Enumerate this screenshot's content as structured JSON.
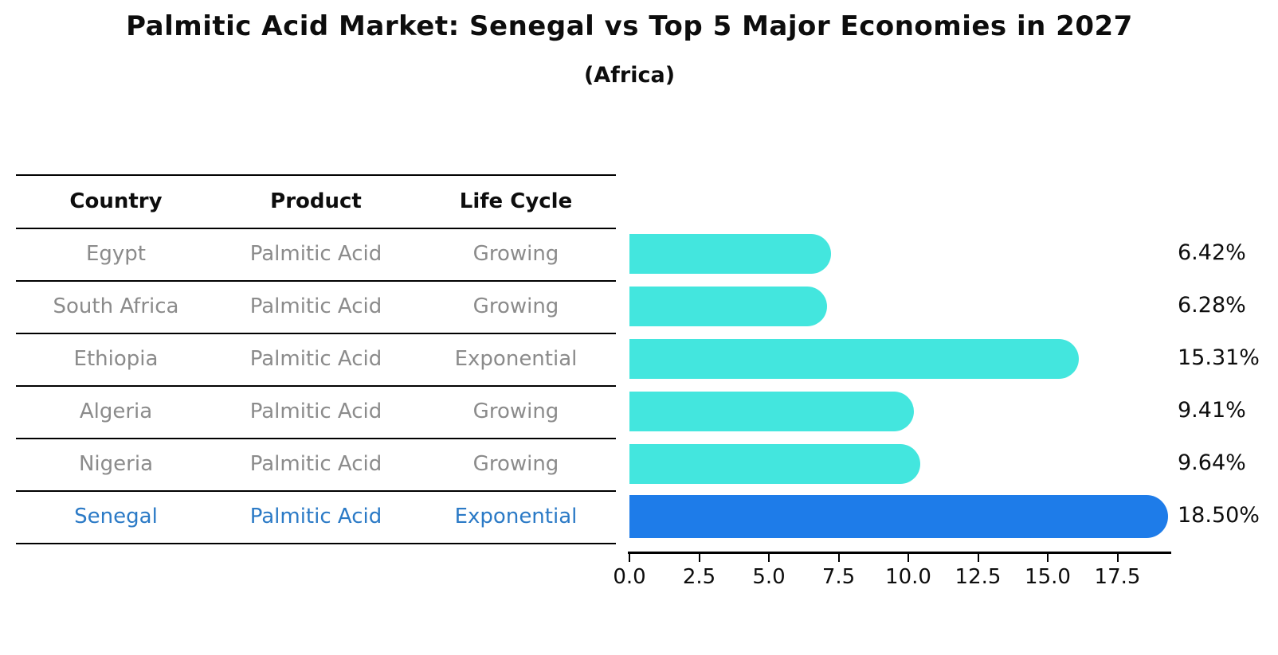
{
  "chart_data": {
    "type": "bar",
    "orientation": "horizontal",
    "title": "Palmitic Acid Market: Senegal vs Top 5 Major Economies in 2027",
    "subtitle": "(Africa)",
    "categories": [
      "Egypt",
      "South Africa",
      "Ethiopia",
      "Algeria",
      "Nigeria",
      "Senegal"
    ],
    "values": [
      6.42,
      6.28,
      15.31,
      9.41,
      9.64,
      18.5
    ],
    "value_labels": [
      "6.42%",
      "6.28%",
      "15.31%",
      "9.41%",
      "9.64%",
      "18.50%"
    ],
    "xlim": [
      0,
      19.43
    ],
    "x_ticks": [
      0,
      2.5,
      5,
      7.5,
      10,
      12.5,
      15,
      17.5
    ],
    "x_tick_labels": [
      "0.0",
      "2.5",
      "5.0",
      "7.5",
      "10.0",
      "12.5",
      "15.0",
      "17.5"
    ],
    "grid": false,
    "legend": false,
    "highlight_index": 5,
    "bar_color": "#43e6de",
    "highlight_bar_color": "#1e7ce9"
  },
  "table": {
    "headers": [
      "Country",
      "Product",
      "Life Cycle"
    ],
    "rows": [
      {
        "country": "Egypt",
        "product": "Palmitic Acid",
        "life_cycle": "Growing",
        "highlight": false
      },
      {
        "country": "South Africa",
        "product": "Palmitic Acid",
        "life_cycle": "Growing",
        "highlight": false
      },
      {
        "country": "Ethiopia",
        "product": "Palmitic Acid",
        "life_cycle": "Exponential",
        "highlight": false
      },
      {
        "country": "Algeria",
        "product": "Palmitic Acid",
        "life_cycle": "Growing",
        "highlight": false
      },
      {
        "country": "Nigeria",
        "product": "Palmitic Acid",
        "life_cycle": "Growing",
        "highlight": false
      },
      {
        "country": "Senegal",
        "product": "Palmitic Acid",
        "life_cycle": "Exponential",
        "highlight": true
      }
    ],
    "header_text_color": "#0d0d0d",
    "row_text_color": "#8b8b8b",
    "highlight_text_color": "#2b7ac6",
    "line_color": "#000000"
  }
}
